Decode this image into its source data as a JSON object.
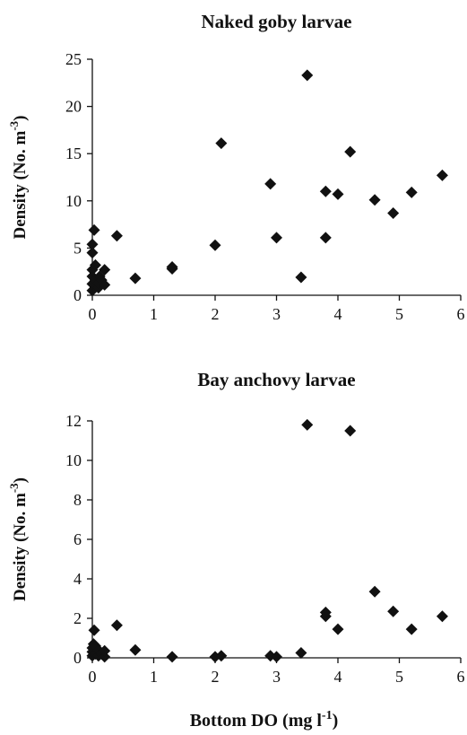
{
  "chart_data": [
    {
      "type": "scatter",
      "title": "Naked goby larvae",
      "ylabel": {
        "main": "Density (No. m",
        "sup": "-3",
        "close": ")"
      },
      "xlabel": null,
      "xlim": [
        0,
        6
      ],
      "ylim": [
        0,
        25
      ],
      "xticks": [
        "0",
        "1",
        "2",
        "3",
        "4",
        "5",
        "6"
      ],
      "yticks": [
        "0",
        "5",
        "10",
        "15",
        "20",
        "25"
      ],
      "grid": false,
      "marker": "diamond",
      "points": [
        {
          "x": 0.0,
          "y": 0.5
        },
        {
          "x": 0.0,
          "y": 1.2
        },
        {
          "x": 0.0,
          "y": 2.0
        },
        {
          "x": 0.0,
          "y": 2.7
        },
        {
          "x": 0.0,
          "y": 4.5
        },
        {
          "x": 0.0,
          "y": 5.4
        },
        {
          "x": 0.03,
          "y": 6.9
        },
        {
          "x": 0.05,
          "y": 1.6
        },
        {
          "x": 0.05,
          "y": 3.2
        },
        {
          "x": 0.1,
          "y": 0.8
        },
        {
          "x": 0.1,
          "y": 1.3
        },
        {
          "x": 0.12,
          "y": 2.0
        },
        {
          "x": 0.15,
          "y": 1.6
        },
        {
          "x": 0.2,
          "y": 1.1
        },
        {
          "x": 0.2,
          "y": 2.7
        },
        {
          "x": 0.4,
          "y": 6.3
        },
        {
          "x": 0.7,
          "y": 1.8
        },
        {
          "x": 1.3,
          "y": 2.8
        },
        {
          "x": 1.3,
          "y": 3.0
        },
        {
          "x": 2.0,
          "y": 5.3
        },
        {
          "x": 2.1,
          "y": 16.1
        },
        {
          "x": 2.9,
          "y": 11.8
        },
        {
          "x": 3.0,
          "y": 6.1
        },
        {
          "x": 3.4,
          "y": 1.9
        },
        {
          "x": 3.5,
          "y": 23.3
        },
        {
          "x": 3.8,
          "y": 11.0
        },
        {
          "x": 3.8,
          "y": 6.1
        },
        {
          "x": 4.0,
          "y": 10.7
        },
        {
          "x": 4.2,
          "y": 15.2
        },
        {
          "x": 4.6,
          "y": 10.1
        },
        {
          "x": 4.9,
          "y": 8.7
        },
        {
          "x": 5.2,
          "y": 10.9
        },
        {
          "x": 5.7,
          "y": 12.7
        }
      ]
    },
    {
      "type": "scatter",
      "title": "Bay anchovy larvae",
      "ylabel": {
        "main": "Density (No. m",
        "sup": "-3",
        "close": ")"
      },
      "xlabel": {
        "main": "Bottom DO (mg l",
        "sup": "-1",
        "close": ")"
      },
      "xlim": [
        0,
        6
      ],
      "ylim": [
        0,
        12
      ],
      "xticks": [
        "0",
        "1",
        "2",
        "3",
        "4",
        "5",
        "6"
      ],
      "yticks": [
        "0",
        "2",
        "4",
        "6",
        "8",
        "10",
        "12"
      ],
      "grid": false,
      "marker": "diamond",
      "points": [
        {
          "x": 0.0,
          "y": 0.1
        },
        {
          "x": 0.0,
          "y": 0.3
        },
        {
          "x": 0.0,
          "y": 0.5
        },
        {
          "x": 0.02,
          "y": 0.7
        },
        {
          "x": 0.03,
          "y": 1.4
        },
        {
          "x": 0.05,
          "y": 0.2
        },
        {
          "x": 0.05,
          "y": 0.6
        },
        {
          "x": 0.1,
          "y": 0.4
        },
        {
          "x": 0.1,
          "y": 0.1
        },
        {
          "x": 0.15,
          "y": 0.2
        },
        {
          "x": 0.2,
          "y": 0.05
        },
        {
          "x": 0.2,
          "y": 0.35
        },
        {
          "x": 0.4,
          "y": 1.65
        },
        {
          "x": 0.7,
          "y": 0.4
        },
        {
          "x": 1.3,
          "y": 0.05
        },
        {
          "x": 2.0,
          "y": 0.05
        },
        {
          "x": 2.1,
          "y": 0.1
        },
        {
          "x": 2.9,
          "y": 0.1
        },
        {
          "x": 3.0,
          "y": 0.05
        },
        {
          "x": 3.4,
          "y": 0.25
        },
        {
          "x": 3.5,
          "y": 11.8
        },
        {
          "x": 3.8,
          "y": 2.1
        },
        {
          "x": 3.8,
          "y": 2.3
        },
        {
          "x": 4.0,
          "y": 1.45
        },
        {
          "x": 4.2,
          "y": 11.5
        },
        {
          "x": 4.6,
          "y": 3.35
        },
        {
          "x": 4.9,
          "y": 2.35
        },
        {
          "x": 5.2,
          "y": 1.45
        },
        {
          "x": 5.7,
          "y": 2.1
        }
      ]
    }
  ]
}
